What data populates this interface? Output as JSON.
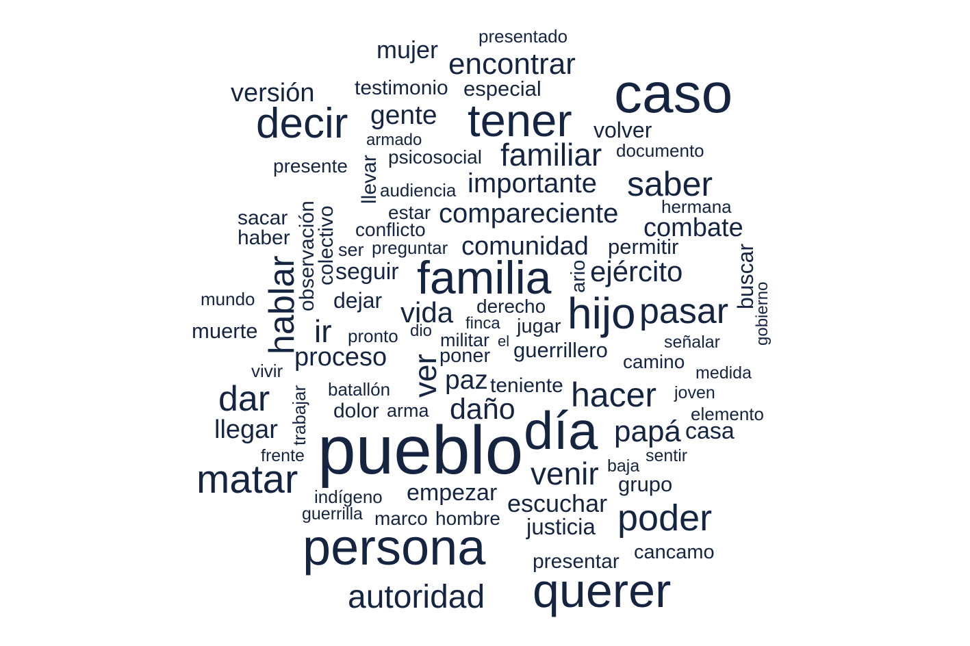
{
  "color": "#152440",
  "words": [
    "presentado",
    "mujer",
    "encontrar",
    "caso",
    "versión",
    "testimonio",
    "especial",
    "decir",
    "gente",
    "tener",
    "volver",
    "armado",
    "familiar",
    "documento",
    "presente",
    "psicosocial",
    "llevar",
    "saber",
    "audiencia",
    "importante",
    "hermana",
    "sacar",
    "observación",
    "colectivo",
    "estar",
    "compareciente",
    "combate",
    "haber",
    "conflicto",
    "ser",
    "preguntar",
    "comunidad",
    "permitir",
    "buscar",
    "hablar",
    "seguir",
    "familia",
    "ario",
    "ejército",
    "gobierno",
    "mundo",
    "dejar",
    "derecho",
    "hijo",
    "pasar",
    "vida",
    "ir",
    "finca",
    "muerte",
    "dio",
    "pronto",
    "jugar",
    "militar",
    "el",
    "señalar",
    "proceso",
    "poner",
    "guerrillero",
    "camino",
    "ver",
    "vivir",
    "medida",
    "trabajar",
    "paz",
    "teniente",
    "batallón",
    "dar",
    "hacer",
    "joven",
    "dolor",
    "arma",
    "daño",
    "elemento",
    "llegar",
    "día",
    "papá",
    "casa",
    "pueblo",
    "frente",
    "sentir",
    "matar",
    "venir",
    "baja",
    "grupo",
    "indígeno",
    "empezar",
    "escuchar",
    "guerrilla",
    "marco",
    "hombre",
    "poder",
    "justicia",
    "persona",
    "cancamo",
    "presentar",
    "querer",
    "autoridad"
  ]
}
